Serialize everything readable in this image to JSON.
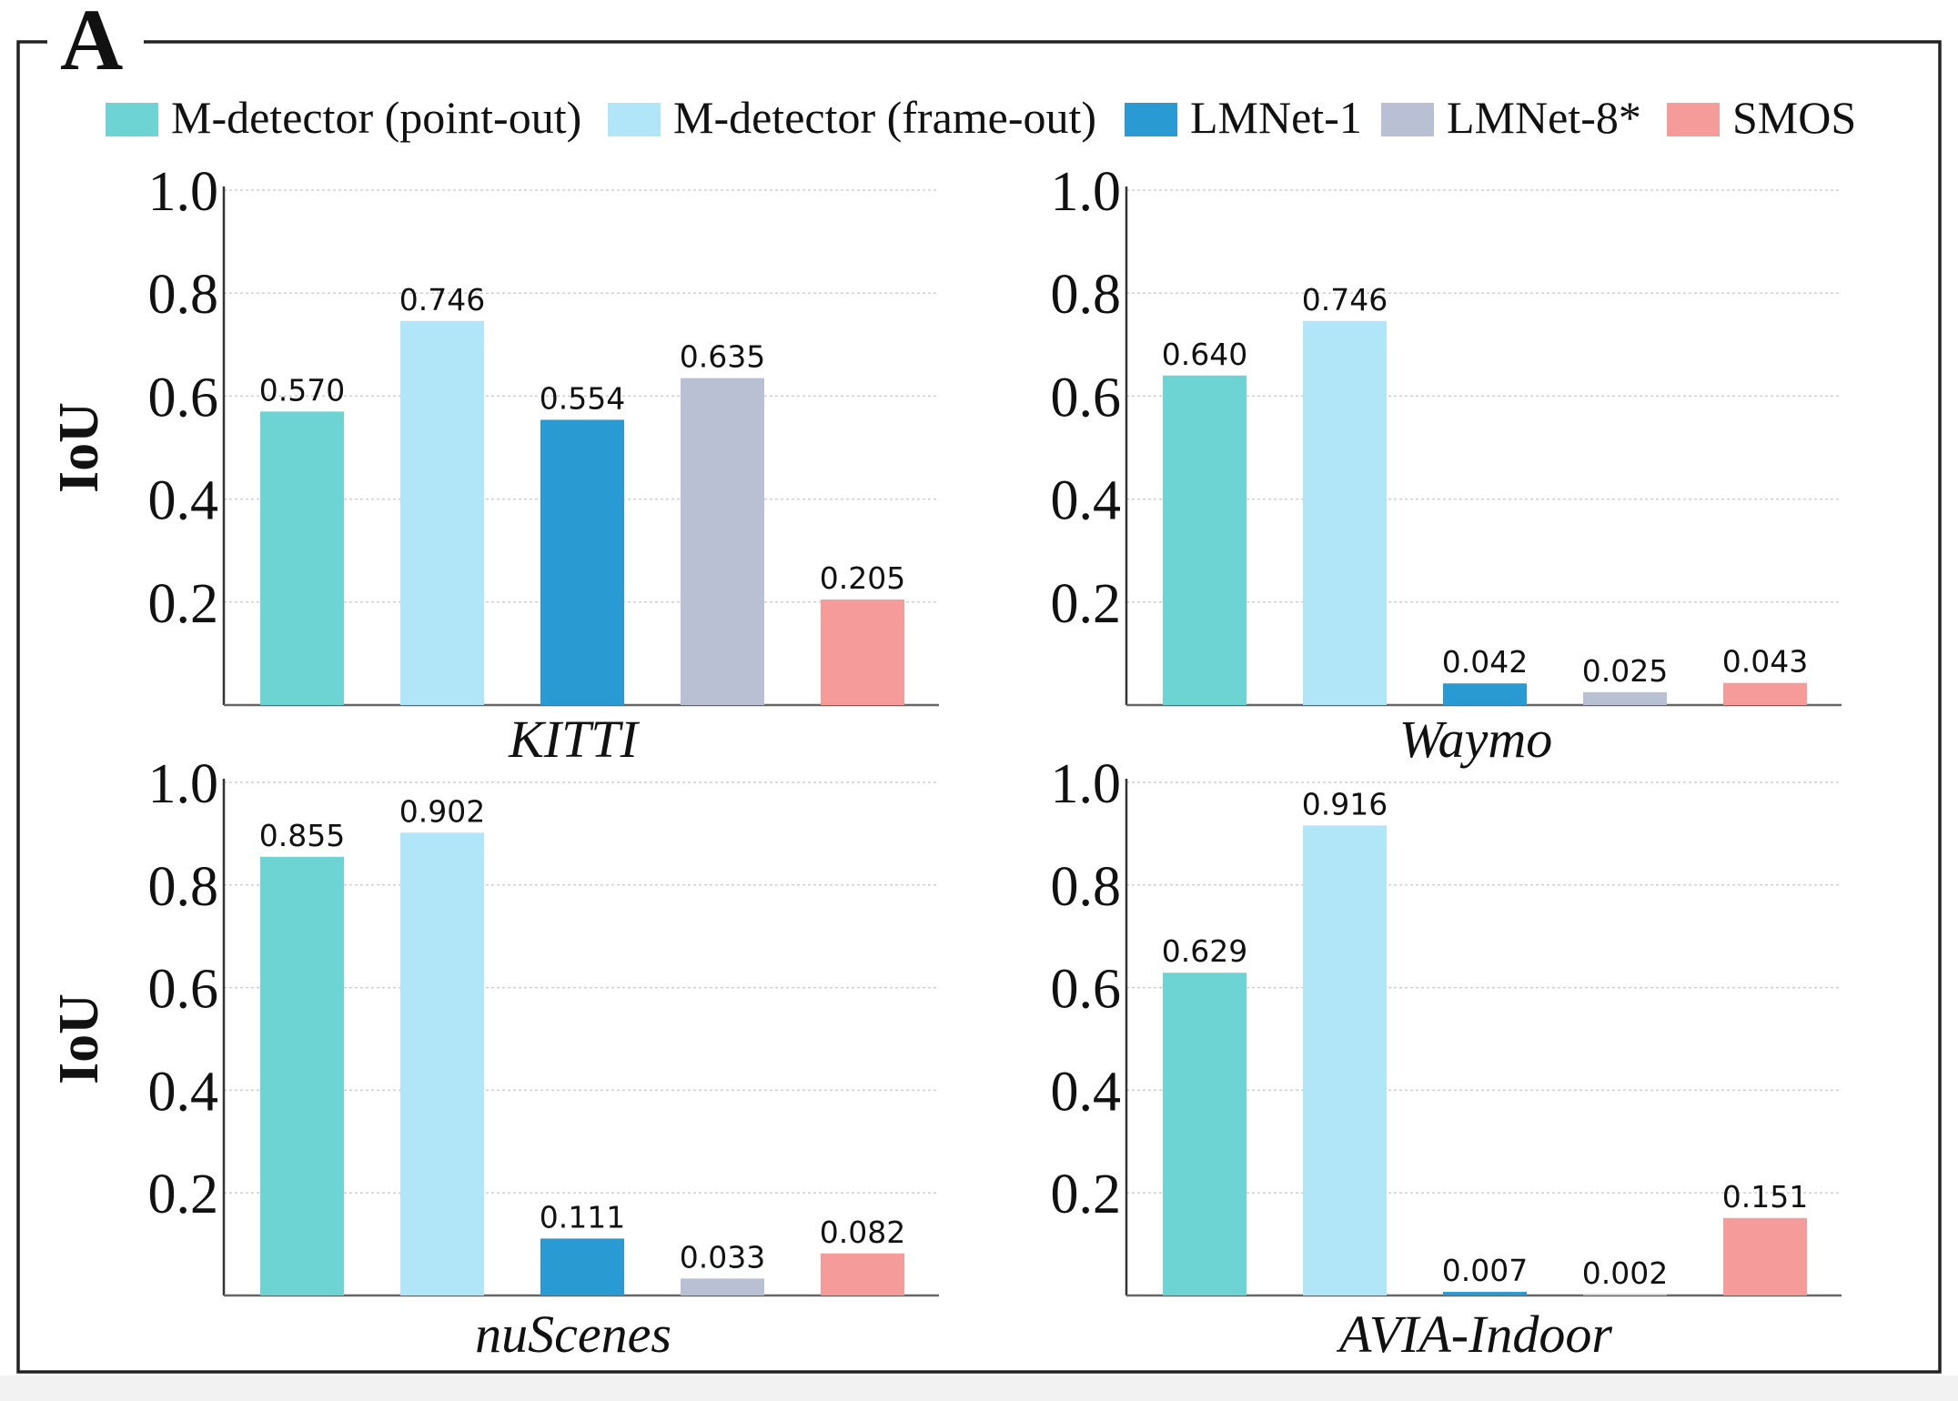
{
  "panel_label": "A",
  "legend": [
    {
      "label": "M-detector (point-out)",
      "color": "#6dd3d3"
    },
    {
      "label": "M-detector (frame-out)",
      "color": "#b0e6f8"
    },
    {
      "label": "LMNet-1",
      "color": "#2a9ad3"
    },
    {
      "label": "LMNet-8*",
      "color": "#b9c0d3"
    },
    {
      "label": "SMOS",
      "color": "#f59c9b"
    }
  ],
  "chart_data": [
    {
      "type": "bar",
      "title": "KITTI",
      "ylabel": "IoU",
      "xlabel": "",
      "ylim": [
        0,
        1.0
      ],
      "yticks": [
        "0.2",
        "0.4",
        "0.6",
        "0.8",
        "1.0"
      ],
      "grid": true,
      "categories": [
        "M-detector (point-out)",
        "M-detector (frame-out)",
        "LMNet-1",
        "LMNet-8*",
        "SMOS"
      ],
      "values": [
        0.57,
        0.746,
        0.554,
        0.635,
        0.205
      ],
      "value_labels": [
        "0.570",
        "0.746",
        "0.554",
        "0.635",
        "0.205"
      ]
    },
    {
      "type": "bar",
      "title": "Waymo",
      "ylabel": "",
      "xlabel": "",
      "ylim": [
        0,
        1.0
      ],
      "yticks": [
        "0.2",
        "0.4",
        "0.6",
        "0.8",
        "1.0"
      ],
      "grid": true,
      "categories": [
        "M-detector (point-out)",
        "M-detector (frame-out)",
        "LMNet-1",
        "LMNet-8*",
        "SMOS"
      ],
      "values": [
        0.64,
        0.746,
        0.042,
        0.025,
        0.043
      ],
      "value_labels": [
        "0.640",
        "0.746",
        "0.042",
        "0.025",
        "0.043"
      ]
    },
    {
      "type": "bar",
      "title": "nuScenes",
      "ylabel": "IoU",
      "xlabel": "",
      "ylim": [
        0,
        1.0
      ],
      "yticks": [
        "0.2",
        "0.4",
        "0.6",
        "0.8",
        "1.0"
      ],
      "grid": true,
      "categories": [
        "M-detector (point-out)",
        "M-detector (frame-out)",
        "LMNet-1",
        "LMNet-8*",
        "SMOS"
      ],
      "values": [
        0.855,
        0.902,
        0.111,
        0.033,
        0.082
      ],
      "value_labels": [
        "0.855",
        "0.902",
        "0.111",
        "0.033",
        "0.082"
      ]
    },
    {
      "type": "bar",
      "title": "AVIA-Indoor",
      "ylabel": "",
      "xlabel": "",
      "ylim": [
        0,
        1.0
      ],
      "yticks": [
        "0.2",
        "0.4",
        "0.6",
        "0.8",
        "1.0"
      ],
      "grid": true,
      "categories": [
        "M-detector (point-out)",
        "M-detector (frame-out)",
        "LMNet-1",
        "LMNet-8*",
        "SMOS"
      ],
      "values": [
        0.629,
        0.916,
        0.007,
        0.002,
        0.151
      ],
      "value_labels": [
        "0.629",
        "0.916",
        "0.007",
        "0.002",
        "0.151"
      ]
    }
  ]
}
